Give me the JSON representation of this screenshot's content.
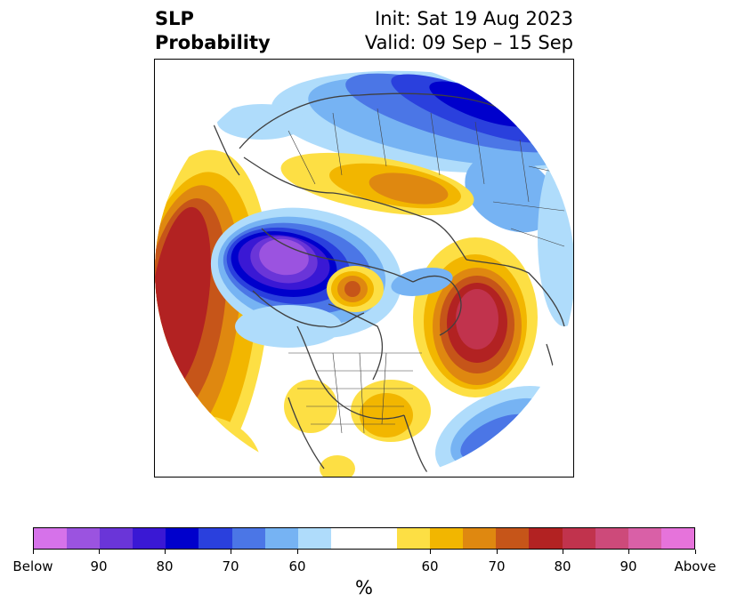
{
  "title": {
    "left": "SLP\nProbability",
    "right": "Init: Sat 19 Aug 2023\nValid: 09 Sep – 15 Sep"
  },
  "colorbar": {
    "unit": "%",
    "colors_below": [
      "#d672ea",
      "#9b53e0",
      "#6a35d8",
      "#3a18d4",
      "#0000cc",
      "#2a40dd",
      "#4b76e6",
      "#76b3f3",
      "#afdcfb"
    ],
    "color_neutral": "#ffffff",
    "colors_above": [
      "#fddf44",
      "#f2b600",
      "#df8810",
      "#c65519",
      "#b22222",
      "#c1334d",
      "#cd4a7a",
      "#d960a7",
      "#e673db"
    ],
    "tick_labels": [
      "Below",
      "90",
      "80",
      "70",
      "60",
      "60",
      "70",
      "80",
      "90",
      "Above"
    ]
  },
  "map": {
    "projection": "north-polar-stereographic",
    "land_outline_color": "#404040",
    "anomaly_regions": [
      {
        "region": "north-pacific",
        "sign": "above",
        "max_level": "80-90"
      },
      {
        "region": "eastern-arctic-canada",
        "sign": "below",
        "max_level": "Below-90"
      },
      {
        "region": "northern-scandinavia",
        "sign": "below",
        "max_level": "80-90"
      },
      {
        "region": "northern-siberia",
        "sign": "above",
        "max_level": "70-80"
      },
      {
        "region": "alaska",
        "sign": "above",
        "max_level": "70-80"
      },
      {
        "region": "north-atlantic",
        "sign": "above",
        "max_level": "80-90"
      },
      {
        "region": "eastern-united-states",
        "sign": "above",
        "max_level": "60-70"
      },
      {
        "region": "subtropical-atlantic",
        "sign": "below",
        "max_level": "60-70"
      }
    ]
  }
}
